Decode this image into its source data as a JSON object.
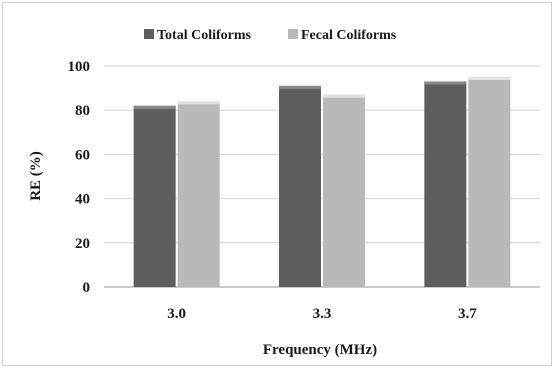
{
  "chart_data": {
    "type": "bar",
    "categories": [
      "3.0",
      "3.3",
      "3.7"
    ],
    "series": [
      {
        "name": "Total Coliforms",
        "values": [
          82,
          91,
          93
        ],
        "color": "#5e5e5e"
      },
      {
        "name": "Fecal Coliforms",
        "values": [
          84,
          87,
          95
        ],
        "color": "#b9b9b9"
      }
    ],
    "xlabel": "Frequency (MHz)",
    "ylabel": "RE (%)",
    "ylim": [
      0,
      100
    ],
    "yticks": [
      "0",
      "20",
      "40",
      "60",
      "80",
      "100"
    ],
    "grid": true,
    "legend": "top"
  }
}
